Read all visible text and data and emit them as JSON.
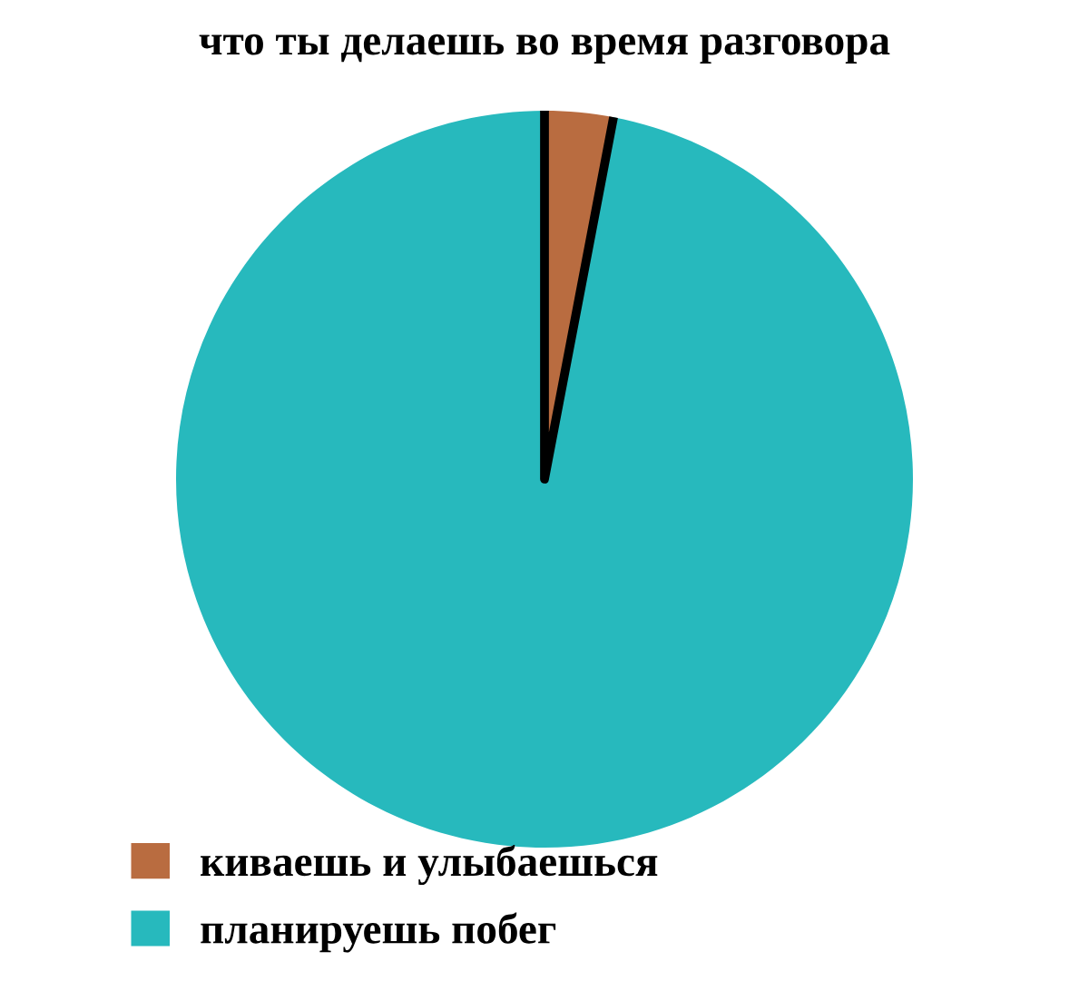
{
  "chart_data": {
    "type": "pie",
    "title": "что ты делаешь во время разговора",
    "categories": [
      "киваешь и улыбаешься",
      "планируешь побег"
    ],
    "values": [
      3,
      97
    ],
    "colors": [
      "#b96c40",
      "#27b9bd"
    ],
    "legend": "bottom left"
  }
}
